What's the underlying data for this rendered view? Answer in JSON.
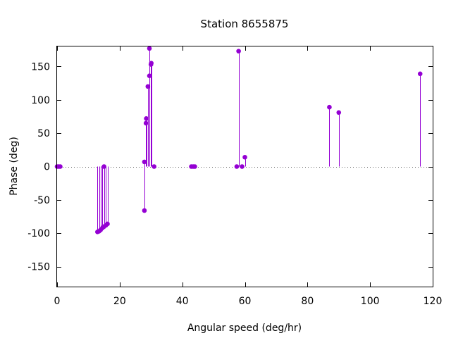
{
  "chart_data": {
    "type": "scatter",
    "style": "impulses with points",
    "title": "Station 8655875",
    "xlabel": "Angular speed (deg/hr)",
    "ylabel": "Phase (deg)",
    "xlim": [
      0,
      120
    ],
    "ylim": [
      -180,
      180
    ],
    "xticks": [
      0,
      20,
      40,
      60,
      80,
      100,
      120
    ],
    "yticks": [
      -150,
      -100,
      -50,
      0,
      50,
      100,
      150
    ],
    "grid": false,
    "zero_axis": "dotted",
    "color": "#9400d3",
    "points": [
      {
        "x": 0.0,
        "y": 0
      },
      {
        "x": 0.5,
        "y": 0
      },
      {
        "x": 1.0,
        "y": 0
      },
      {
        "x": 12.9,
        "y": -98
      },
      {
        "x": 13.4,
        "y": -97
      },
      {
        "x": 13.9,
        "y": -95
      },
      {
        "x": 14.5,
        "y": -92
      },
      {
        "x": 15.0,
        "y": 0
      },
      {
        "x": 15.0,
        "y": -90
      },
      {
        "x": 15.6,
        "y": -88
      },
      {
        "x": 16.1,
        "y": -86
      },
      {
        "x": 27.9,
        "y": 7
      },
      {
        "x": 27.9,
        "y": -66
      },
      {
        "x": 28.4,
        "y": 65
      },
      {
        "x": 28.5,
        "y": 72
      },
      {
        "x": 29.0,
        "y": 120
      },
      {
        "x": 29.5,
        "y": 136
      },
      {
        "x": 29.5,
        "y": 177
      },
      {
        "x": 30.0,
        "y": 153
      },
      {
        "x": 30.1,
        "y": 155
      },
      {
        "x": 31.0,
        "y": 0
      },
      {
        "x": 42.9,
        "y": 0
      },
      {
        "x": 43.5,
        "y": 0
      },
      {
        "x": 44.0,
        "y": 0
      },
      {
        "x": 57.4,
        "y": 0
      },
      {
        "x": 58.0,
        "y": 173
      },
      {
        "x": 59.1,
        "y": 0
      },
      {
        "x": 60.0,
        "y": 14
      },
      {
        "x": 87.0,
        "y": 89
      },
      {
        "x": 90.0,
        "y": 81
      },
      {
        "x": 116.0,
        "y": 139
      }
    ]
  }
}
